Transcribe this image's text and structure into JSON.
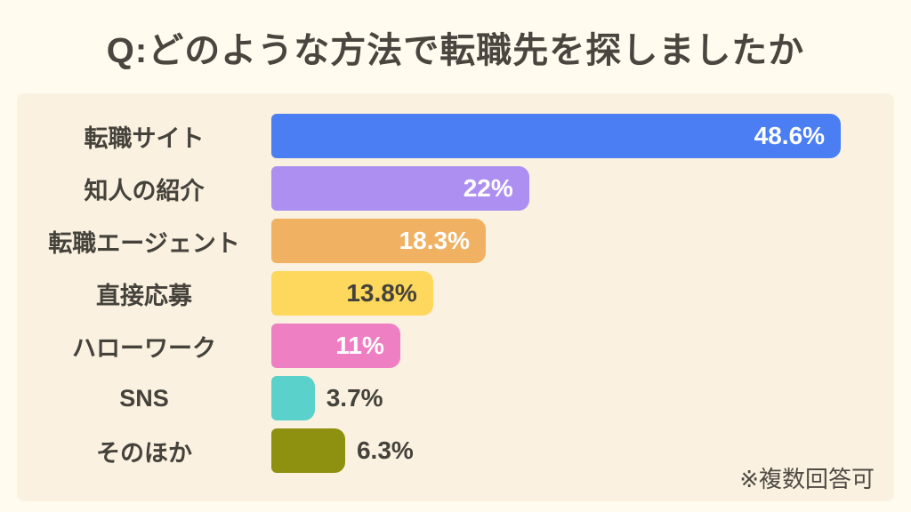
{
  "page": {
    "background_color": "#fffbee",
    "panel_color": "#faf1e0",
    "text_color": "#45423c"
  },
  "header": {
    "title": "Q:どのような方法で転職先を探しましたか"
  },
  "footnote": {
    "text": "※複数回答可"
  },
  "chart_data": {
    "type": "bar",
    "orientation": "horizontal",
    "title": "Q:どのような方法で転職先を探しましたか",
    "note": "※複数回答可",
    "categories": [
      "転職サイト",
      "知人の紹介",
      "転職エージェント",
      "直接応募",
      "ハローワーク",
      "SNS",
      "そのほか"
    ],
    "values": [
      48.6,
      22,
      18.3,
      13.8,
      11,
      3.7,
      6.3
    ],
    "xlim": [
      0,
      53.2
    ],
    "grid": false,
    "legend": "none",
    "series": [
      {
        "category": "転職サイト",
        "value": 48.6,
        "display": "48.6%",
        "color": "#4a7ef2",
        "value_label_position": "inside",
        "value_label_color": "#ffffff"
      },
      {
        "category": "知人の紹介",
        "value": 22,
        "display": "22%",
        "color": "#ad8ff1",
        "value_label_position": "inside",
        "value_label_color": "#ffffff"
      },
      {
        "category": "転職エージェント",
        "value": 18.3,
        "display": "18.3%",
        "color": "#f0b163",
        "value_label_position": "inside",
        "value_label_color": "#ffffff"
      },
      {
        "category": "直接応募",
        "value": 13.8,
        "display": "13.8%",
        "color": "#fed85c",
        "value_label_position": "inside",
        "value_label_color": "#45423c"
      },
      {
        "category": "ハローワーク",
        "value": 11,
        "display": "11%",
        "color": "#ee7fc3",
        "value_label_position": "inside",
        "value_label_color": "#ffffff"
      },
      {
        "category": "SNS",
        "value": 3.7,
        "display": "3.7%",
        "color": "#5ad2cb",
        "value_label_position": "outside",
        "value_label_color": "#45423c"
      },
      {
        "category": "そのほか",
        "value": 6.3,
        "display": "6.3%",
        "color": "#8e9110",
        "value_label_position": "outside",
        "value_label_color": "#45423c"
      }
    ]
  }
}
